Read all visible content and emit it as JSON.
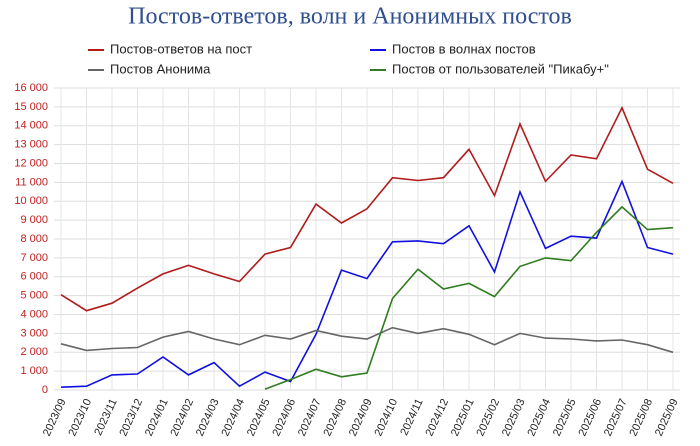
{
  "chart_data": {
    "type": "line",
    "title": "Постов-ответов, волн и Анонимных постов",
    "categories": [
      "2023/09",
      "2023/10",
      "2023/11",
      "2023/12",
      "2024/01",
      "2024/02",
      "2024/03",
      "2024/04",
      "2024/05",
      "2024/06",
      "2024/07",
      "2024/08",
      "2024/09",
      "2024/10",
      "2024/11",
      "2024/12",
      "2025/01",
      "2025/02",
      "2025/03",
      "2025/04",
      "2025/05",
      "2025/06",
      "2025/07",
      "2025/08",
      "2025/09"
    ],
    "series": [
      {
        "name": "Постов-ответов на пост",
        "color": "#b01c1c",
        "values": [
          5050,
          4200,
          4600,
          5400,
          6150,
          6600,
          6150,
          5750,
          7200,
          7550,
          9850,
          8850,
          9600,
          11250,
          11100,
          11250,
          12750,
          10300,
          14100,
          11050,
          12450,
          12250,
          14950,
          11700,
          10950
        ]
      },
      {
        "name": "Постов в волнах постов",
        "color": "#1010e0",
        "values": [
          150,
          200,
          800,
          850,
          1750,
          800,
          1450,
          200,
          950,
          450,
          2950,
          6350,
          5900,
          7850,
          7900,
          7750,
          8700,
          6250,
          10500,
          7500,
          8150,
          8050,
          11050,
          7550,
          7200
        ]
      },
      {
        "name": "Постов Анонима",
        "color": "#666666",
        "values": [
          2450,
          2100,
          2200,
          2250,
          2800,
          3100,
          2700,
          2400,
          2900,
          2700,
          3150,
          2850,
          2700,
          3300,
          3000,
          3250,
          2950,
          2400,
          3000,
          2750,
          2700,
          2600,
          2650,
          2400,
          2000
        ]
      },
      {
        "name": "Постов от пользователей \"Пикабу+\"",
        "color": "#2e7d1e",
        "values": [
          null,
          null,
          null,
          null,
          null,
          null,
          null,
          null,
          50,
          550,
          1100,
          700,
          900,
          4850,
          6400,
          5350,
          5650,
          4950,
          6550,
          7000,
          6850,
          8350,
          9700,
          8500,
          8600
        ]
      }
    ],
    "ylim": [
      0,
      16000
    ],
    "yticks": [
      0,
      {
        "value": 1000,
        "label": "1 000"
      },
      {
        "value": 2000,
        "label": "2 000"
      },
      {
        "value": 3000,
        "label": "3 000"
      },
      {
        "value": 4000,
        "label": "4 000"
      },
      {
        "value": 5000,
        "label": "5 000"
      },
      {
        "value": 6000,
        "label": "6 000"
      },
      {
        "value": 7000,
        "label": "7 000"
      },
      {
        "value": 8000,
        "label": "8 000"
      },
      {
        "value": 9000,
        "label": "9 000"
      },
      {
        "value": 10000,
        "label": "10 000"
      },
      {
        "value": 11000,
        "label": "11 000"
      },
      {
        "value": 12000,
        "label": "12 000"
      },
      {
        "value": 13000,
        "label": "13 000"
      },
      {
        "value": 14000,
        "label": "14 000"
      },
      {
        "value": 15000,
        "label": "15 000"
      },
      {
        "value": 16000,
        "label": "16 000"
      }
    ],
    "grid": true
  }
}
